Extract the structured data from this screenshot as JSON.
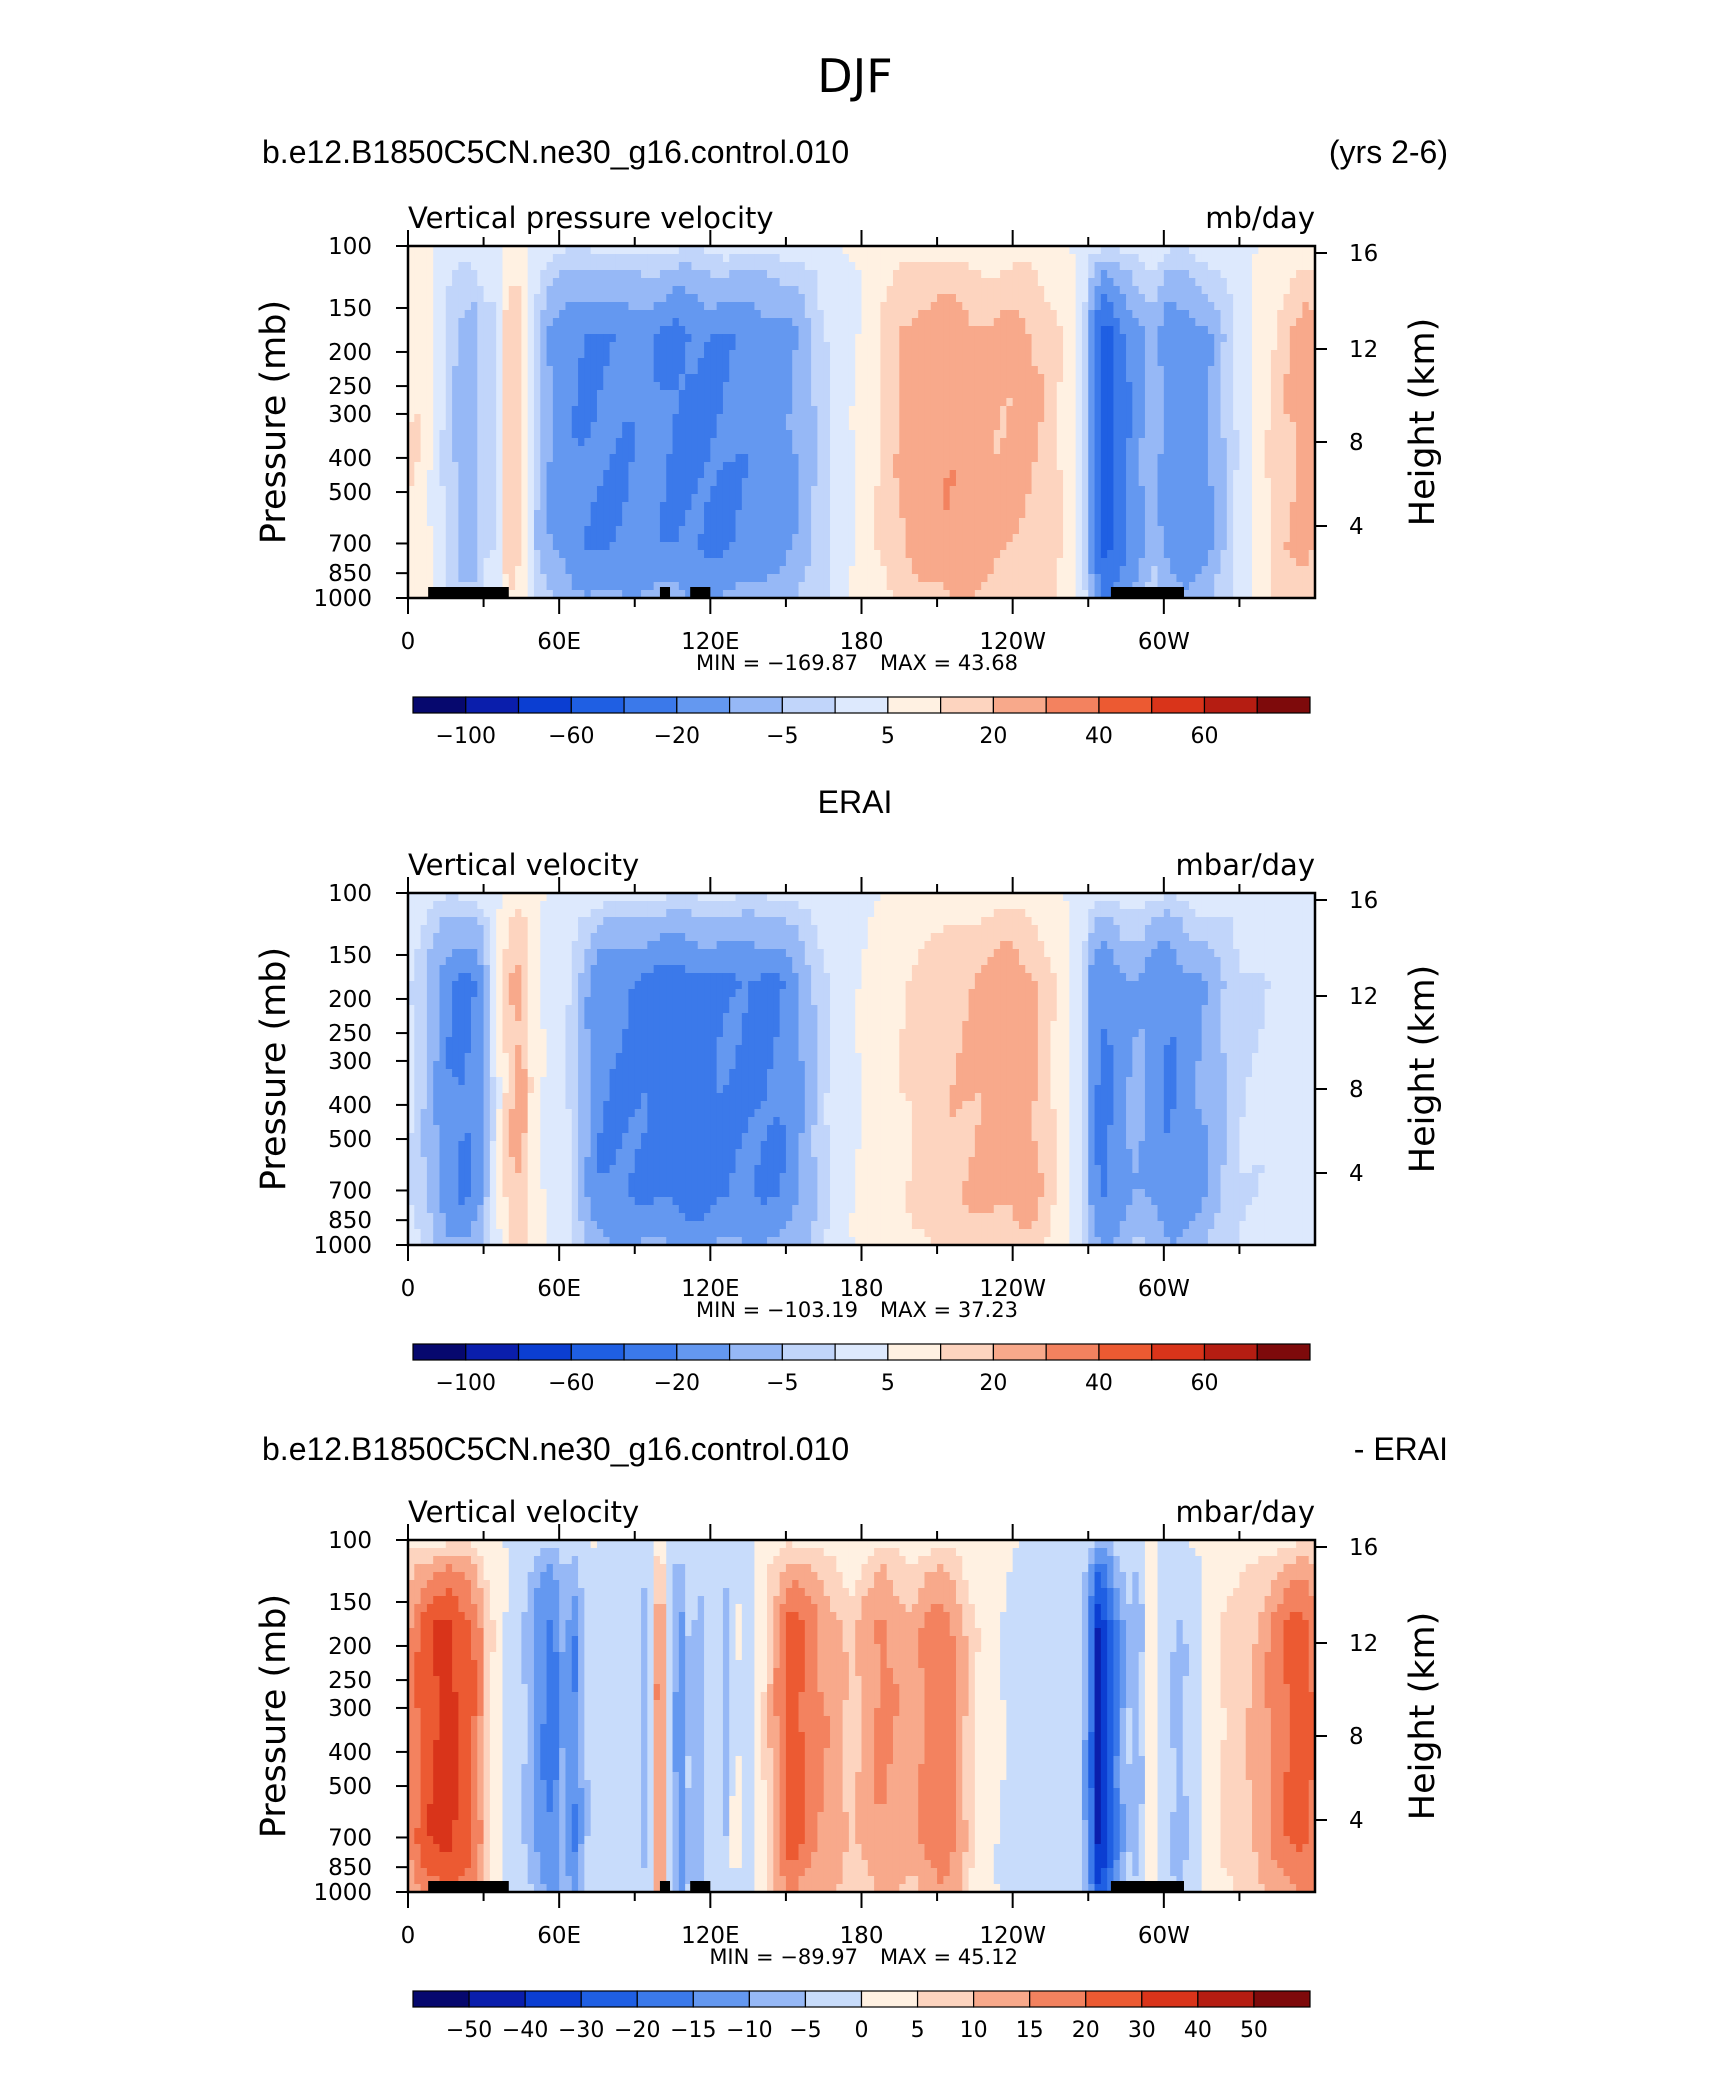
{
  "figure_title": "DJF",
  "chart_data": [
    {
      "type": "heatmap",
      "header_left": "b.e12.B1850C5CN.ne30_g16.control.010",
      "header_right": "(yrs 2-6)",
      "variable": "Vertical pressure velocity",
      "units": "mb/day",
      "ylabel": "Pressure (mb)",
      "ylabel_right": "Height (km)",
      "pressure_ticks": [
        "100",
        "150",
        "200",
        "250",
        "300",
        "400",
        "500",
        "700",
        "850",
        "1000"
      ],
      "height_ticks": [
        "16",
        "12",
        "8",
        "4"
      ],
      "lon_ticks": [
        "0",
        "60E",
        "120E",
        "180",
        "120W",
        "60W"
      ],
      "xlim": [
        0,
        360
      ],
      "ylim_mb": [
        1000,
        100
      ],
      "min_label": "MIN = −169.87",
      "max_label": "MAX = 43.68",
      "min": -169.87,
      "max": 43.68,
      "colorbar_labels": [
        "−100",
        "−60",
        "−20",
        "−5",
        "5",
        "20",
        "40",
        "60"
      ],
      "colorbar_levels": [
        -120,
        -100,
        -80,
        -60,
        -40,
        -20,
        -10,
        -5,
        0,
        5,
        10,
        20,
        30,
        40,
        50,
        60,
        80
      ],
      "colors": {
        "-9": "#06086e",
        "-8": "#0a1eac",
        "-7": "#0b3ed2",
        "-6": "#1f5fe3",
        "-5": "#3b79ea",
        "-4": "#6498f0",
        "-3": "#96b8f6",
        "-2": "#c1d5fa",
        "-1": "#dde9fd",
        "0": "#ffffff",
        "1": "#fff1e2",
        "2": "#fdd4bf",
        "3": "#f8a98b",
        "4": "#f3825f",
        "5": "#ec5a32",
        "6": "#d9341a",
        "7": "#b51d12",
        "8": "#7e0a0b"
      },
      "profile": [
        [
          0,
          1.6
        ],
        [
          3,
          1.5
        ],
        [
          6,
          1.3
        ],
        [
          10,
          -0.5
        ],
        [
          16,
          -2.2
        ],
        [
          22,
          -3.2
        ],
        [
          27,
          -3
        ],
        [
          30,
          -1.5
        ],
        [
          33,
          -1.8
        ],
        [
          36,
          -0.8
        ],
        [
          38,
          1.8
        ],
        [
          42,
          2.4
        ],
        [
          46,
          1.4
        ],
        [
          50,
          -2.2
        ],
        [
          56,
          -3.6
        ],
        [
          62,
          -4.2
        ],
        [
          70,
          -4.4
        ],
        [
          78,
          -4.3
        ],
        [
          86,
          -4.5
        ],
        [
          96,
          -4.4
        ],
        [
          105,
          -4.6
        ],
        [
          115,
          -4.4
        ],
        [
          125,
          -4.6
        ],
        [
          135,
          -4.5
        ],
        [
          145,
          -4
        ],
        [
          155,
          -3.2
        ],
        [
          163,
          -2.2
        ],
        [
          170,
          -1.2
        ],
        [
          175,
          -0.5
        ],
        [
          180,
          0.3
        ],
        [
          188,
          1.8
        ],
        [
          196,
          2.8
        ],
        [
          205,
          3
        ],
        [
          215,
          3.2
        ],
        [
          225,
          3
        ],
        [
          235,
          2.8
        ],
        [
          245,
          2.6
        ],
        [
          255,
          2
        ],
        [
          263,
          0.8
        ],
        [
          268,
          -1.2
        ],
        [
          272,
          -4.6
        ],
        [
          277,
          -6
        ],
        [
          283,
          -5
        ],
        [
          290,
          -4
        ],
        [
          296,
          -3
        ],
        [
          302,
          -4.2
        ],
        [
          310,
          -4
        ],
        [
          318,
          -3.5
        ],
        [
          325,
          -2.4
        ],
        [
          332,
          -0.8
        ],
        [
          340,
          1.2
        ],
        [
          348,
          2.5
        ],
        [
          356,
          3
        ],
        [
          360,
          2.6
        ]
      ],
      "topography": [
        [
          8,
          40
        ],
        [
          100,
          104
        ],
        [
          112,
          120
        ],
        [
          279,
          308
        ]
      ]
    },
    {
      "type": "heatmap",
      "header_center": "ERAI",
      "variable": "Vertical velocity",
      "units": "mbar/day",
      "ylabel": "Pressure (mb)",
      "ylabel_right": "Height (km)",
      "pressure_ticks": [
        "100",
        "150",
        "200",
        "250",
        "300",
        "400",
        "500",
        "700",
        "850",
        "1000"
      ],
      "height_ticks": [
        "16",
        "12",
        "8",
        "4"
      ],
      "lon_ticks": [
        "0",
        "60E",
        "120E",
        "180",
        "120W",
        "60W"
      ],
      "xlim": [
        0,
        360
      ],
      "ylim_mb": [
        1000,
        100
      ],
      "min_label": "MIN = −103.19",
      "max_label": "MAX = 37.23",
      "min": -103.19,
      "max": 37.23,
      "colorbar_labels": [
        "−100",
        "−60",
        "−20",
        "−5",
        "5",
        "20",
        "40",
        "60"
      ],
      "colorbar_levels": [
        -120,
        -100,
        -80,
        -60,
        -40,
        -20,
        -10,
        -5,
        0,
        5,
        10,
        20,
        30,
        40,
        50,
        60,
        80
      ],
      "colors": {
        "-9": "#06086e",
        "-8": "#0a1eac",
        "-7": "#0b3ed2",
        "-6": "#1f5fe3",
        "-5": "#3b79ea",
        "-4": "#6498f0",
        "-3": "#96b8f6",
        "-2": "#c1d5fa",
        "-1": "#dde9fd",
        "0": "#ffffff",
        "1": "#fff1e2",
        "2": "#fdd4bf",
        "3": "#f8a98b",
        "4": "#f3825f",
        "5": "#ec5a32",
        "6": "#d9341a",
        "7": "#b51d12",
        "8": "#7e0a0b"
      },
      "profile": [
        [
          0,
          -1.2
        ],
        [
          5,
          -2.2
        ],
        [
          10,
          -3.4
        ],
        [
          16,
          -4.4
        ],
        [
          22,
          -4.6
        ],
        [
          28,
          -4
        ],
        [
          32,
          -2.2
        ],
        [
          35,
          -0.6
        ],
        [
          38,
          1.4
        ],
        [
          42,
          2.6
        ],
        [
          46,
          2.4
        ],
        [
          50,
          0.6
        ],
        [
          55,
          -0.5
        ],
        [
          62,
          -1
        ],
        [
          68,
          -2.4
        ],
        [
          75,
          -4.2
        ],
        [
          82,
          -4.6
        ],
        [
          90,
          -4.8
        ],
        [
          100,
          -4.7
        ],
        [
          110,
          -4.9
        ],
        [
          120,
          -4.8
        ],
        [
          130,
          -4.7
        ],
        [
          140,
          -4.6
        ],
        [
          148,
          -4.3
        ],
        [
          155,
          -3.6
        ],
        [
          162,
          -2.6
        ],
        [
          168,
          -1.5
        ],
        [
          175,
          -0.5
        ],
        [
          180,
          0.2
        ],
        [
          188,
          0.8
        ],
        [
          196,
          1.4
        ],
        [
          205,
          1.8
        ],
        [
          215,
          2.3
        ],
        [
          225,
          2.8
        ],
        [
          235,
          3
        ],
        [
          243,
          2.8
        ],
        [
          250,
          2.4
        ],
        [
          256,
          1.6
        ],
        [
          262,
          0.4
        ],
        [
          268,
          -1.5
        ],
        [
          272,
          -4.2
        ],
        [
          277,
          -4.8
        ],
        [
          283,
          -4
        ],
        [
          290,
          -3.4
        ],
        [
          296,
          -4
        ],
        [
          302,
          -4.4
        ],
        [
          310,
          -3.8
        ],
        [
          318,
          -3.4
        ],
        [
          325,
          -2.6
        ],
        [
          332,
          -1.6
        ],
        [
          340,
          -1.2
        ],
        [
          348,
          -1
        ],
        [
          356,
          -1.1
        ],
        [
          360,
          -1.2
        ]
      ],
      "topography": []
    },
    {
      "type": "heatmap",
      "header_left": "b.e12.B1850C5CN.ne30_g16.control.010",
      "header_right": "- ERAI",
      "variable": "Vertical velocity",
      "units": "mbar/day",
      "ylabel": "Pressure (mb)",
      "ylabel_right": "Height (km)",
      "pressure_ticks": [
        "100",
        "150",
        "200",
        "250",
        "300",
        "400",
        "500",
        "700",
        "850",
        "1000"
      ],
      "height_ticks": [
        "16",
        "12",
        "8",
        "4"
      ],
      "lon_ticks": [
        "0",
        "60E",
        "120E",
        "180",
        "120W",
        "60W"
      ],
      "xlim": [
        0,
        360
      ],
      "ylim_mb": [
        1000,
        100
      ],
      "min_label": "MIN = −89.97",
      "max_label": "MAX = 45.12",
      "min": -89.97,
      "max": 45.12,
      "colorbar_labels": [
        "−50",
        "−40",
        "−30",
        "−20",
        "−15",
        "−10",
        "−5",
        "0",
        "5",
        "10",
        "15",
        "20",
        "30",
        "40",
        "50"
      ],
      "colorbar_levels": [
        -60,
        -50,
        -40,
        -30,
        -20,
        -15,
        -10,
        -5,
        0,
        5,
        10,
        15,
        20,
        30,
        40,
        50,
        60
      ],
      "colors": {
        "-8": "#06086e",
        "-7": "#0a1eac",
        "-6": "#0b3ed2",
        "-5": "#1f5fe3",
        "-4": "#3b79ea",
        "-3": "#6498f0",
        "-2": "#96b8f6",
        "-1": "#c8dcfb",
        "0": "#ffffff",
        "1": "#fff1e2",
        "2": "#fdd4bf",
        "3": "#f8a98b",
        "4": "#f3825f",
        "5": "#ec5a32",
        "6": "#d9341a",
        "7": "#b51d12",
        "8": "#7e0a0b"
      },
      "profile": [
        [
          0,
          3.2
        ],
        [
          5,
          4.6
        ],
        [
          10,
          5.4
        ],
        [
          16,
          6
        ],
        [
          20,
          5.6
        ],
        [
          24,
          5.2
        ],
        [
          28,
          4
        ],
        [
          32,
          1.8
        ],
        [
          36,
          0.6
        ],
        [
          40,
          -0.8
        ],
        [
          46,
          -1.6
        ],
        [
          52,
          -3.2
        ],
        [
          58,
          -3.8
        ],
        [
          62,
          -2
        ],
        [
          66,
          -3.4
        ],
        [
          72,
          -1
        ],
        [
          78,
          -0.6
        ],
        [
          84,
          -1.2
        ],
        [
          90,
          -0.6
        ],
        [
          95,
          -2.2
        ],
        [
          100,
          5.4
        ],
        [
          104,
          -1
        ],
        [
          108,
          -3.4
        ],
        [
          112,
          -1.2
        ],
        [
          116,
          -2.4
        ],
        [
          120,
          -0.5
        ],
        [
          126,
          -2
        ],
        [
          130,
          0.6
        ],
        [
          135,
          -1.8
        ],
        [
          140,
          1.2
        ],
        [
          146,
          3.4
        ],
        [
          152,
          5.2
        ],
        [
          158,
          4.2
        ],
        [
          164,
          3.4
        ],
        [
          170,
          3
        ],
        [
          176,
          2.2
        ],
        [
          182,
          3.2
        ],
        [
          188,
          3.8
        ],
        [
          194,
          3.2
        ],
        [
          200,
          2.6
        ],
        [
          206,
          3.8
        ],
        [
          212,
          4.4
        ],
        [
          218,
          3.6
        ],
        [
          224,
          1.8
        ],
        [
          230,
          0.6
        ],
        [
          238,
          -0.4
        ],
        [
          246,
          -0.8
        ],
        [
          254,
          -0.5
        ],
        [
          260,
          -1
        ],
        [
          266,
          -0.8
        ],
        [
          270,
          -3.2
        ],
        [
          274,
          -7.2
        ],
        [
          278,
          -5.6
        ],
        [
          282,
          -3.4
        ],
        [
          286,
          -1.6
        ],
        [
          290,
          -2.4
        ],
        [
          295,
          1.8
        ],
        [
          300,
          -0.8
        ],
        [
          306,
          -1.8
        ],
        [
          312,
          -1
        ],
        [
          318,
          0.6
        ],
        [
          324,
          1.6
        ],
        [
          330,
          2.2
        ],
        [
          336,
          2.8
        ],
        [
          342,
          3.6
        ],
        [
          348,
          4.4
        ],
        [
          354,
          4.8
        ],
        [
          360,
          4.2
        ]
      ],
      "topography": [
        [
          8,
          40
        ],
        [
          100,
          104
        ],
        [
          112,
          120
        ],
        [
          279,
          308
        ]
      ]
    }
  ]
}
